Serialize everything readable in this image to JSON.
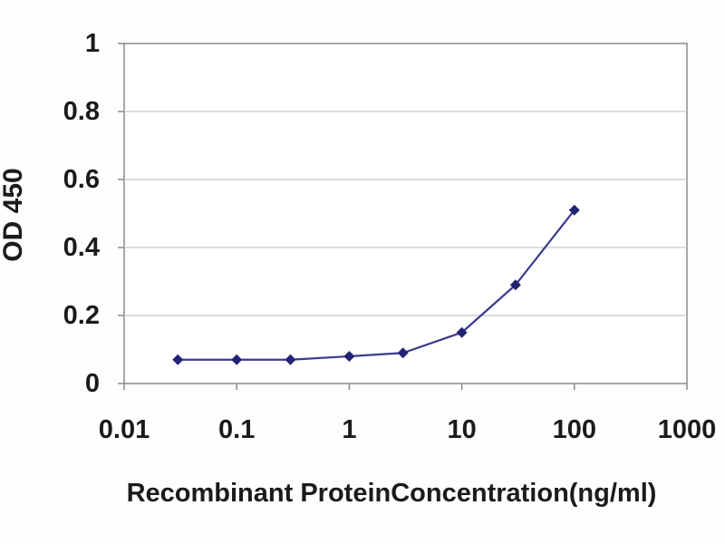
{
  "chart_data": {
    "type": "line",
    "title": "",
    "xlabel": "Recombinant ProteinConcentration(ng/ml)",
    "ylabel": "OD 450",
    "x_scale": "log",
    "xlim": [
      0.01,
      1000
    ],
    "ylim": [
      0,
      1
    ],
    "x_ticks": [
      0.01,
      0.1,
      1,
      10,
      100,
      1000
    ],
    "x_tick_labels": [
      "0.01",
      "0.1",
      "1",
      "10",
      "100",
      "1000"
    ],
    "y_ticks": [
      0,
      0.2,
      0.4,
      0.6,
      0.8,
      1
    ],
    "y_tick_labels": [
      "0",
      "0.2",
      "0.4",
      "0.6",
      "0.8",
      "1"
    ],
    "grid": "horizontal-only",
    "legend": "none",
    "series": [
      {
        "name": "OD450",
        "marker": "diamond",
        "x": [
          0.03,
          0.1,
          0.3,
          1,
          3,
          10,
          30,
          100
        ],
        "y": [
          0.07,
          0.07,
          0.07,
          0.08,
          0.09,
          0.15,
          0.29,
          0.51
        ]
      }
    ],
    "colors": {
      "line": "#3a3a8f",
      "marker": "#232376",
      "gridline": "#c6c6c6",
      "axis_border": "#8a8a8a",
      "tick": "#8a8a8a",
      "label_text": "#1b1b1b",
      "plot_background": "#ffffff",
      "page_background": "#fefefe"
    }
  }
}
